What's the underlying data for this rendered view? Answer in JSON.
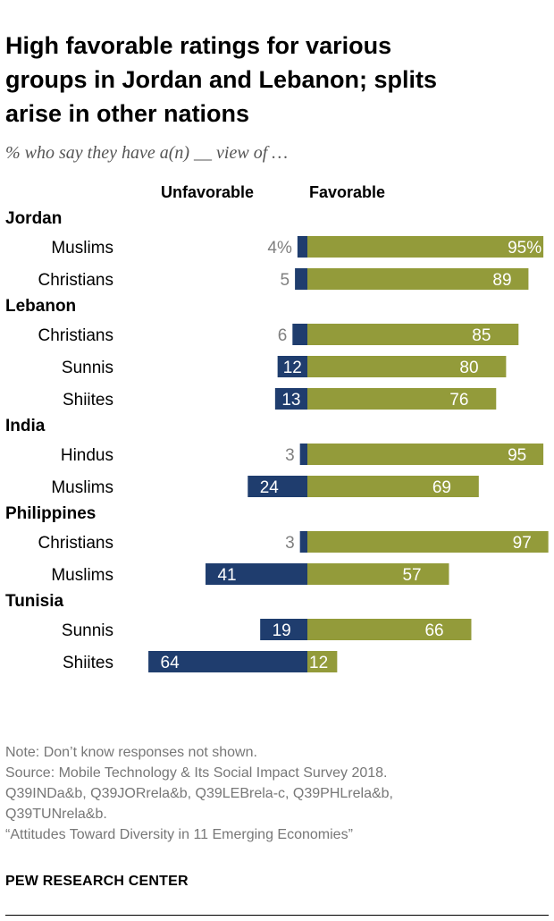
{
  "title_lines": [
    "High favorable ratings for various",
    "groups in Jordan and Lebanon; splits",
    "arise in other nations"
  ],
  "subtitle": "% who say they have a(n) __ view of …",
  "colors": {
    "unfavorable": "#1f3d6e",
    "favorable": "#939b3a"
  },
  "chart_data": {
    "type": "bar",
    "orientation": "horizontal-diverging",
    "title": "High favorable ratings for various groups in Jordan and Lebanon; splits arise in other nations",
    "subtitle": "% who say they have a(n) __ view of …",
    "series_names": {
      "unfavorable": "Unfavorable",
      "favorable": "Favorable"
    },
    "xlim": [
      -64,
      97
    ],
    "groups": [
      {
        "name": "Jordan",
        "rows": [
          {
            "label": "Muslims",
            "unfavorable": 4,
            "favorable": 95,
            "unfavorable_label": "4%",
            "favorable_label": "95%"
          },
          {
            "label": "Christians",
            "unfavorable": 5,
            "favorable": 89,
            "unfavorable_label": "5",
            "favorable_label": "89"
          }
        ]
      },
      {
        "name": "Lebanon",
        "rows": [
          {
            "label": "Christians",
            "unfavorable": 6,
            "favorable": 85,
            "unfavorable_label": "6",
            "favorable_label": "85"
          },
          {
            "label": "Sunnis",
            "unfavorable": 12,
            "favorable": 80,
            "unfavorable_label": "12",
            "favorable_label": "80"
          },
          {
            "label": "Shiites",
            "unfavorable": 13,
            "favorable": 76,
            "unfavorable_label": "13",
            "favorable_label": "76"
          }
        ]
      },
      {
        "name": "India",
        "rows": [
          {
            "label": "Hindus",
            "unfavorable": 3,
            "favorable": 95,
            "unfavorable_label": "3",
            "favorable_label": "95"
          },
          {
            "label": "Muslims",
            "unfavorable": 24,
            "favorable": 69,
            "unfavorable_label": "24",
            "favorable_label": "69"
          }
        ]
      },
      {
        "name": "Philippines",
        "rows": [
          {
            "label": "Christians",
            "unfavorable": 3,
            "favorable": 97,
            "unfavorable_label": "3",
            "favorable_label": "97"
          },
          {
            "label": "Muslims",
            "unfavorable": 41,
            "favorable": 57,
            "unfavorable_label": "41",
            "favorable_label": "57"
          }
        ]
      },
      {
        "name": "Tunisia",
        "rows": [
          {
            "label": "Sunnis",
            "unfavorable": 19,
            "favorable": 66,
            "unfavorable_label": "19",
            "favorable_label": "66"
          },
          {
            "label": "Shiites",
            "unfavorable": 64,
            "favorable": 12,
            "unfavorable_label": "64",
            "favorable_label": "12"
          }
        ]
      }
    ]
  },
  "notes": [
    "Note: Don’t know responses not shown.",
    "Source: Mobile Technology & Its Social Impact Survey 2018.",
    "Q39INDa&b, Q39JORrela&b, Q39LEBrela-c, Q39PHLrela&b,",
    "Q39TUNrela&b.",
    "“Attitudes Toward Diversity in 11 Emerging Economies”"
  ],
  "brand": "PEW RESEARCH CENTER"
}
